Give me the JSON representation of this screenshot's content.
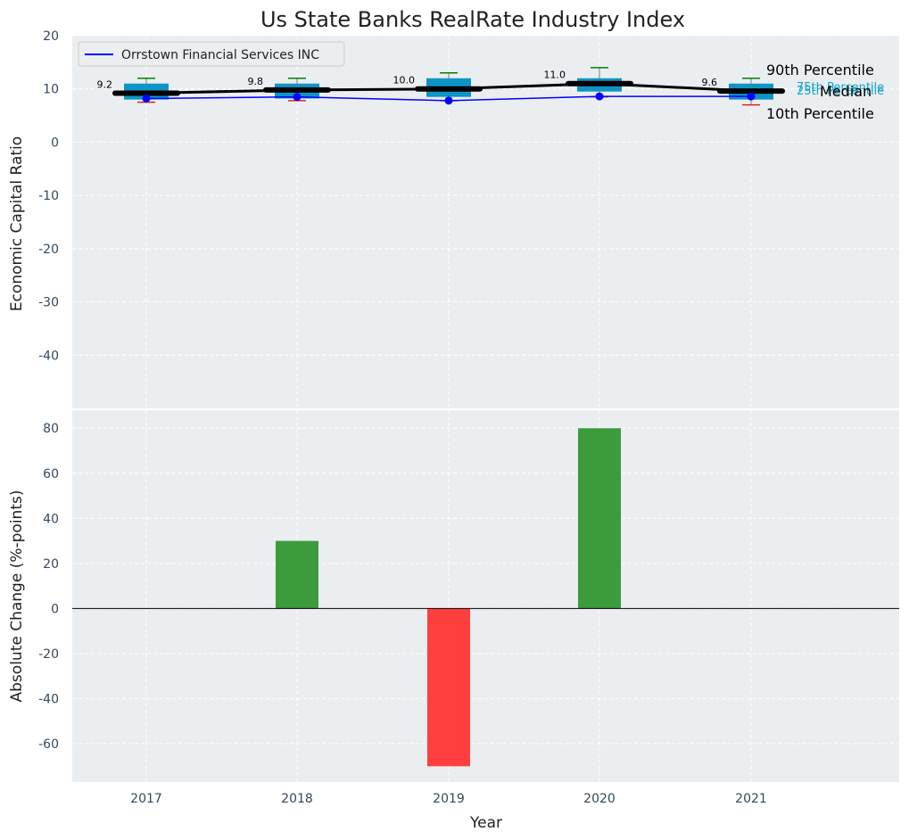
{
  "title": "Us State Banks RealRate Industry Index",
  "xlabel": "Year",
  "chart_data": [
    {
      "type": "box",
      "name": "top-panel",
      "ylabel": "Economic Capital Ratio",
      "ylim": [
        -50,
        20
      ],
      "yticks": [
        20,
        10,
        0,
        -10,
        -20,
        -30,
        -40
      ],
      "categories": [
        "2017",
        "2018",
        "2019",
        "2020",
        "2021"
      ],
      "p10": [
        7.5,
        7.8,
        7.8,
        8.5,
        7.0
      ],
      "q25": [
        8.0,
        8.2,
        8.5,
        9.5,
        8.0
      ],
      "median": [
        9.2,
        9.8,
        10.0,
        11.0,
        9.6
      ],
      "median_labels": [
        "9.2",
        "9.8",
        "10.0",
        "11.0",
        "9.6"
      ],
      "q75": [
        11.0,
        11.0,
        12.0,
        12.0,
        11.0
      ],
      "p90": [
        12.0,
        12.0,
        13.0,
        14.0,
        12.0
      ],
      "company": {
        "name": "Orrstown Financial Services INC",
        "values": [
          8.2,
          8.5,
          7.8,
          8.6,
          8.6
        ],
        "color": "#0000ff"
      },
      "legend": [
        "Orrstown Financial Services INC"
      ],
      "annotations": {
        "p90": "90th Percentile",
        "q75": "75th Percentile",
        "median": "Median",
        "q25": "25th Percentile",
        "p10": "10th Percentile"
      },
      "colors": {
        "box": "#0f94c6",
        "p90": "#008000",
        "p10": "#d62728",
        "median": "#000000"
      }
    },
    {
      "type": "bar",
      "name": "bottom-panel",
      "ylabel": "Absolute Change (%-points)",
      "ylim": [
        -77,
        88
      ],
      "yticks": [
        80,
        60,
        40,
        20,
        0,
        -20,
        -40,
        -60
      ],
      "categories": [
        "2017",
        "2018",
        "2019",
        "2020",
        "2021"
      ],
      "values": [
        0,
        30,
        -70,
        80,
        0
      ],
      "colors": {
        "positive": "#3c9b3c",
        "negative": "#ff3e3e"
      }
    }
  ]
}
